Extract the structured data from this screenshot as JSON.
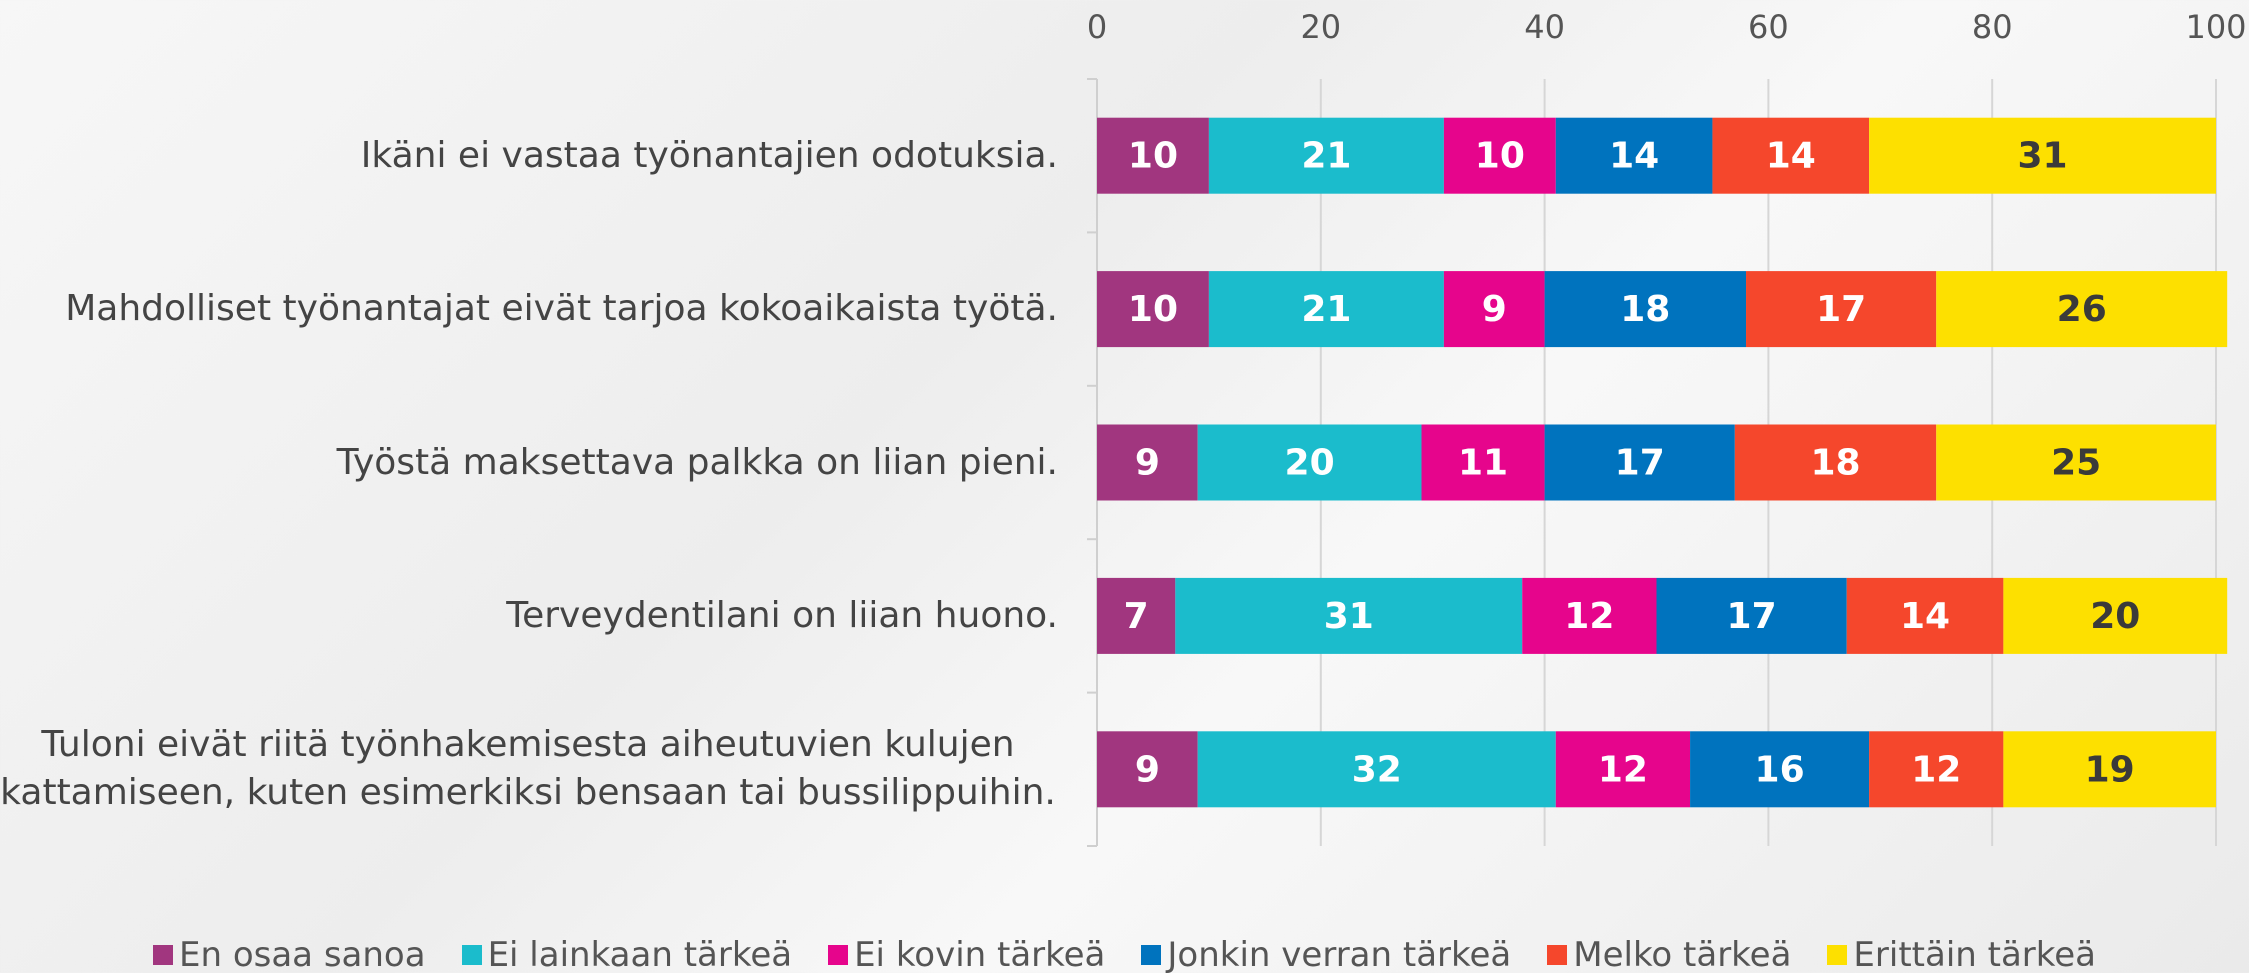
{
  "chart_data": {
    "type": "stacked_bar",
    "orientation": "horizontal",
    "categories": [
      "Ikäni ei vastaa työnantajien odotuksia.",
      "Mahdolliset työnantajat eivät tarjoa kokoaikaista työtä.",
      "Työstä maksettava palkka on liian pieni.",
      "Terveydentilani on liian huono.",
      "Tuloni eivät riitä työnhakemisesta aiheutuvien kulujen kattamiseen, kuten esimerkiksi bensaan tai bussilippuihin."
    ],
    "series": [
      {
        "name": "En osaa sanoa",
        "color": "#a1367f",
        "values": [
          10,
          10,
          9,
          7,
          9
        ]
      },
      {
        "name": "Ei lainkaan tärkeä",
        "color": "#1bbccc",
        "values": [
          21,
          21,
          20,
          31,
          32
        ]
      },
      {
        "name": "Ei kovin tärkeä",
        "color": "#e6058c",
        "values": [
          10,
          9,
          11,
          12,
          12
        ]
      },
      {
        "name": "Jonkin verran tärkeä",
        "color": "#0073be",
        "values": [
          14,
          18,
          17,
          17,
          16
        ]
      },
      {
        "name": "Melko tärkeä",
        "color": "#f5472c",
        "values": [
          14,
          17,
          18,
          14,
          12
        ]
      },
      {
        "name": "Erittäin tärkeä",
        "color": "#fde000",
        "values": [
          31,
          26,
          25,
          20,
          19
        ]
      }
    ],
    "xlim": [
      0,
      100
    ],
    "xticks": [
      0,
      20,
      40,
      60,
      80,
      100
    ],
    "grid": true,
    "legend": "bottom"
  }
}
